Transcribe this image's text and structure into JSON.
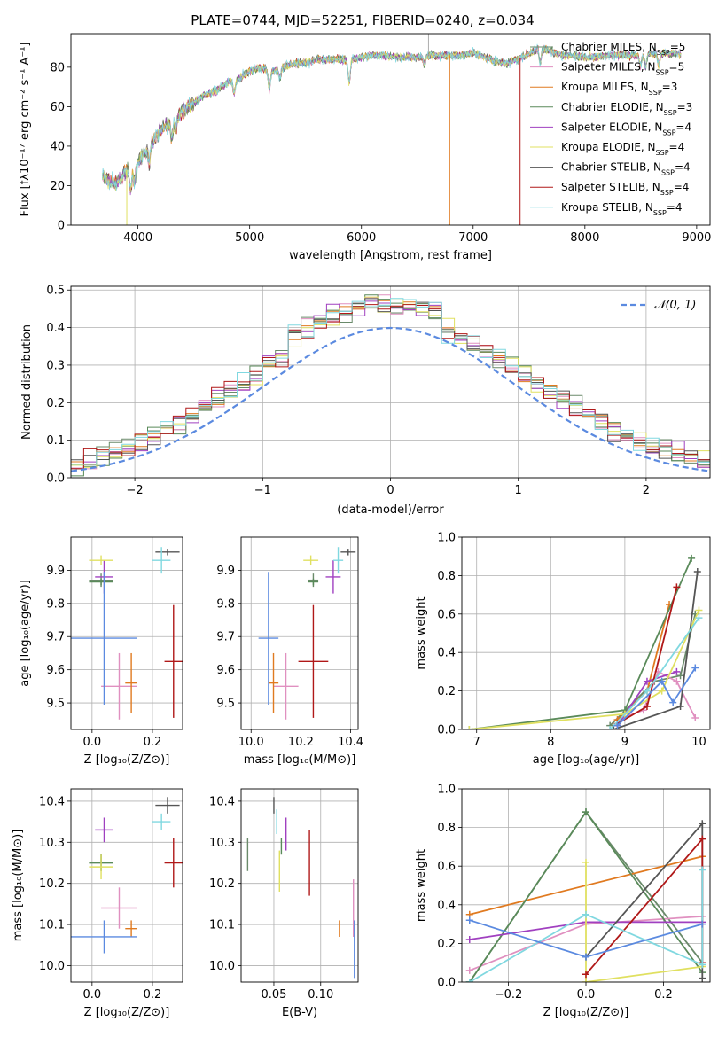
{
  "colors": [
    "#6a8a6a",
    "#e090c0",
    "#e07a20",
    "#5a8a5a",
    "#a040c0",
    "#e0e060",
    "#555555",
    "#b01818",
    "#80d8e0"
  ],
  "chart_data": [
    {
      "id": "spectrum",
      "type": "line",
      "title": "PLATE=0744, MJD=52251, FIBERID=0240, z=0.034",
      "xlabel": "wavelength [Angstrom, rest frame]",
      "ylabel": "Flux [fλ10⁻¹⁷ erg cm⁻² s⁻¹ A⁻¹]",
      "xlim": [
        3400,
        9120
      ],
      "ylim": [
        0,
        97
      ],
      "xticks": [
        4000,
        5000,
        6000,
        7000,
        8000,
        9000
      ],
      "yticks": [
        0,
        20,
        40,
        60,
        80
      ],
      "legend": [
        {
          "label": "Chabrier MILES, N",
          "sub": "SSP",
          "tail": "=5"
        },
        {
          "label": "Salpeter MILES, N",
          "sub": "SSP",
          "tail": "=5"
        },
        {
          "label": "Kroupa MILES, N",
          "sub": "SSP",
          "tail": "=3"
        },
        {
          "label": "Chabrier ELODIE, N",
          "sub": "SSP",
          "tail": "=3"
        },
        {
          "label": "Salpeter ELODIE, N",
          "sub": "SSP",
          "tail": "=4"
        },
        {
          "label": "Kroupa ELODIE, N",
          "sub": "SSP",
          "tail": "=4"
        },
        {
          "label": "Chabrier STELIB, N",
          "sub": "SSP",
          "tail": "=4"
        },
        {
          "label": "Salpeter STELIB, N",
          "sub": "SSP",
          "tail": "=4"
        },
        {
          "label": "Kroupa STELIB, N",
          "sub": "SSP",
          "tail": "=4"
        }
      ],
      "legend_placement": "right",
      "continuum": [
        [
          3680,
          25
        ],
        [
          3800,
          20
        ],
        [
          3900,
          28
        ],
        [
          4000,
          32
        ],
        [
          4100,
          40
        ],
        [
          4200,
          48
        ],
        [
          4300,
          52
        ],
        [
          4400,
          58
        ],
        [
          4500,
          62
        ],
        [
          4600,
          66
        ],
        [
          4700,
          68
        ],
        [
          4800,
          72
        ],
        [
          4900,
          74
        ],
        [
          5000,
          78
        ],
        [
          5100,
          80
        ],
        [
          5200,
          78
        ],
        [
          5300,
          80
        ],
        [
          5400,
          82
        ],
        [
          5500,
          82
        ],
        [
          5600,
          84
        ],
        [
          5700,
          84
        ],
        [
          5800,
          84
        ],
        [
          5900,
          84
        ],
        [
          6000,
          85
        ],
        [
          6100,
          86
        ],
        [
          6200,
          86
        ],
        [
          6300,
          85
        ],
        [
          6400,
          85
        ],
        [
          6500,
          85
        ],
        [
          6600,
          86
        ],
        [
          6700,
          86
        ],
        [
          6800,
          86
        ],
        [
          6900,
          86
        ],
        [
          7000,
          87
        ],
        [
          7100,
          85
        ],
        [
          7200,
          83
        ],
        [
          7300,
          82
        ],
        [
          7400,
          84
        ],
        [
          7500,
          87
        ],
        [
          7600,
          90
        ],
        [
          7700,
          88
        ],
        [
          7800,
          86
        ],
        [
          7900,
          86
        ],
        [
          8000,
          85
        ],
        [
          8200,
          86
        ],
        [
          8400,
          86
        ],
        [
          8600,
          87
        ],
        [
          8800,
          87
        ],
        [
          8860,
          86
        ]
      ]
    },
    {
      "id": "residuals",
      "type": "line",
      "xlabel": "(data-model)/error",
      "ylabel": "Normed distribution",
      "xlim": [
        -2.5,
        2.5
      ],
      "ylim": [
        0,
        0.51
      ],
      "xticks": [
        -2,
        -1,
        0,
        1,
        2
      ],
      "yticks": [
        0.0,
        0.1,
        0.2,
        0.3,
        0.4,
        0.5
      ],
      "legend": "𝒩(0, 1)",
      "legend_placement": "upper right",
      "grid": true,
      "bin_width": 0.1
    },
    {
      "id": "age_vs_Z",
      "type": "scatter",
      "xlabel": "Z [log₁₀(Z/Z⊙)]",
      "ylabel": "age  [log₁₀(age/yr)]",
      "xlim": [
        -0.07,
        0.3
      ],
      "ylim": [
        9.42,
        10.0
      ],
      "xticks": [
        0.0,
        0.2
      ],
      "yticks": [
        9.5,
        9.6,
        9.7,
        9.8,
        9.9
      ],
      "grid": true,
      "points": [
        {
          "series": 0,
          "x": 0.03,
          "y": 9.87,
          "xerr": 0.04,
          "yerr": 0.02
        },
        {
          "series": 1,
          "x": 0.09,
          "y": 9.55,
          "xerr": 0.06,
          "yerr": 0.1
        },
        {
          "series": 2,
          "x": 0.13,
          "y": 9.56,
          "xerr": 0.02,
          "yerr": 0.09
        },
        {
          "series": 3,
          "x": 0.03,
          "y": 9.865,
          "xerr": 0.04,
          "yerr": 0.01
        },
        {
          "series": 4,
          "x": 0.04,
          "y": 9.88,
          "xerr": 0.03,
          "yerr": 0.05
        },
        {
          "series": 5,
          "x": 0.03,
          "y": 9.93,
          "xerr": 0.04,
          "yerr": 0.015
        },
        {
          "series": 6,
          "x": 0.25,
          "y": 9.955,
          "xerr": 0.04,
          "yerr": 0.01
        },
        {
          "series": 7,
          "x": 0.27,
          "y": 9.625,
          "xerr": 0.03,
          "yerr": 0.17
        },
        {
          "series": 8,
          "x": 0.23,
          "y": 9.93,
          "xerr": 0.03,
          "yerr": 0.04
        },
        {
          "series": -1,
          "x": 0.04,
          "y": 9.695,
          "xerr": 0.11,
          "yerr": 0.2
        }
      ]
    },
    {
      "id": "age_vs_mass",
      "type": "scatter",
      "xlabel": "mass [log₁₀(M/M⊙)]",
      "xlim": [
        9.96,
        10.43
      ],
      "ylim": [
        9.42,
        10.0
      ],
      "xticks": [
        10.0,
        10.2,
        10.4
      ],
      "yticks": [
        9.5,
        9.6,
        9.7,
        9.8,
        9.9
      ],
      "grid": true,
      "points": [
        {
          "series": 0,
          "x": 10.25,
          "y": 9.87,
          "xerr": 0.02,
          "yerr": 0.02
        },
        {
          "series": 1,
          "x": 10.14,
          "y": 9.55,
          "xerr": 0.05,
          "yerr": 0.1
        },
        {
          "series": 2,
          "x": 10.09,
          "y": 9.56,
          "xerr": 0.02,
          "yerr": 0.09
        },
        {
          "series": 3,
          "x": 10.25,
          "y": 9.865,
          "xerr": 0.02,
          "yerr": 0.01
        },
        {
          "series": 4,
          "x": 10.33,
          "y": 9.88,
          "xerr": 0.03,
          "yerr": 0.05
        },
        {
          "series": 5,
          "x": 10.24,
          "y": 9.93,
          "xerr": 0.03,
          "yerr": 0.015
        },
        {
          "series": 6,
          "x": 10.39,
          "y": 9.955,
          "xerr": 0.03,
          "yerr": 0.01
        },
        {
          "series": 7,
          "x": 10.25,
          "y": 9.625,
          "xerr": 0.06,
          "yerr": 0.17
        },
        {
          "series": 8,
          "x": 10.35,
          "y": 9.93,
          "xerr": 0.02,
          "yerr": 0.04
        },
        {
          "series": -1,
          "x": 10.07,
          "y": 9.695,
          "xerr": 0.04,
          "yerr": 0.2
        }
      ]
    },
    {
      "id": "massweight_vs_age",
      "type": "line",
      "xlabel": "age  [log₁₀(age/yr)]",
      "ylabel": "mass weight",
      "xlim": [
        6.8,
        10.15
      ],
      "ylim": [
        0,
        1.0
      ],
      "xticks": [
        7,
        8,
        9,
        10
      ],
      "yticks": [
        0.0,
        0.2,
        0.4,
        0.6,
        0.8,
        1.0
      ],
      "grid": true,
      "series": [
        {
          "series": 0,
          "pts": [
            [
              8.8,
              0.02
            ],
            [
              9.4,
              0.25
            ],
            [
              9.75,
              0.28
            ],
            [
              9.95,
              0.6
            ]
          ]
        },
        {
          "series": 1,
          "pts": [
            [
              8.9,
              0.05
            ],
            [
              9.25,
              0.1
            ],
            [
              9.45,
              0.3
            ],
            [
              9.7,
              0.25
            ],
            [
              9.95,
              0.06
            ]
          ]
        },
        {
          "series": 2,
          "pts": [
            [
              8.9,
              0.05
            ],
            [
              9.3,
              0.2
            ],
            [
              9.6,
              0.65
            ]
          ]
        },
        {
          "series": 3,
          "pts": [
            [
              6.9,
              0.0
            ],
            [
              9.0,
              0.1
            ],
            [
              9.9,
              0.89
            ]
          ]
        },
        {
          "series": 4,
          "pts": [
            [
              8.9,
              0.02
            ],
            [
              9.3,
              0.25
            ],
            [
              9.7,
              0.3
            ]
          ]
        },
        {
          "series": 5,
          "pts": [
            [
              6.9,
              0.0
            ],
            [
              9.0,
              0.08
            ],
            [
              9.5,
              0.2
            ],
            [
              10.0,
              0.62
            ]
          ]
        },
        {
          "series": 6,
          "pts": [
            [
              8.85,
              0.0
            ],
            [
              9.75,
              0.12
            ],
            [
              9.98,
              0.82
            ]
          ]
        },
        {
          "series": 7,
          "pts": [
            [
              8.9,
              0.03
            ],
            [
              9.3,
              0.12
            ],
            [
              9.7,
              0.74
            ]
          ]
        },
        {
          "series": 8,
          "pts": [
            [
              8.8,
              0.0
            ],
            [
              9.3,
              0.2
            ],
            [
              10.0,
              0.58
            ]
          ]
        },
        {
          "series": -1,
          "pts": [
            [
              8.9,
              0.02
            ],
            [
              9.5,
              0.25
            ],
            [
              9.65,
              0.14
            ],
            [
              9.95,
              0.32
            ]
          ]
        }
      ]
    },
    {
      "id": "mass_vs_Z",
      "type": "scatter",
      "xlabel": "Z [log₁₀(Z/Z⊙)]",
      "ylabel": "mass [log₁₀(M/M⊙)]",
      "xlim": [
        -0.07,
        0.3
      ],
      "ylim": [
        9.96,
        10.43
      ],
      "xticks": [
        0.0,
        0.2
      ],
      "yticks": [
        10.0,
        10.1,
        10.2,
        10.3,
        10.4
      ],
      "grid": true,
      "points": [
        {
          "series": 0,
          "x": 0.03,
          "y": 10.25,
          "xerr": 0.04,
          "yerr": 0.02
        },
        {
          "series": 1,
          "x": 0.09,
          "y": 10.14,
          "xerr": 0.06,
          "yerr": 0.05
        },
        {
          "series": 2,
          "x": 0.13,
          "y": 10.09,
          "xerr": 0.02,
          "yerr": 0.02
        },
        {
          "series": 3,
          "x": 0.03,
          "y": 10.25,
          "xerr": 0.04,
          "yerr": 0.02
        },
        {
          "series": 4,
          "x": 0.04,
          "y": 10.33,
          "xerr": 0.03,
          "yerr": 0.03
        },
        {
          "series": 5,
          "x": 0.03,
          "y": 10.24,
          "xerr": 0.04,
          "yerr": 0.03
        },
        {
          "series": 6,
          "x": 0.25,
          "y": 10.39,
          "xerr": 0.04,
          "yerr": 0.02
        },
        {
          "series": 7,
          "x": 0.27,
          "y": 10.25,
          "xerr": 0.03,
          "yerr": 0.06
        },
        {
          "series": 8,
          "x": 0.23,
          "y": 10.35,
          "xerr": 0.03,
          "yerr": 0.02
        },
        {
          "series": -1,
          "x": 0.04,
          "y": 10.07,
          "xerr": 0.11,
          "yerr": 0.04
        }
      ]
    },
    {
      "id": "mass_vs_EBV",
      "type": "scatter",
      "xlabel": "E(B-V)",
      "xlim": [
        0.015,
        0.14
      ],
      "ylim": [
        9.96,
        10.43
      ],
      "xticks": [
        0.05,
        0.1
      ],
      "yticks": [
        10.0,
        10.1,
        10.2,
        10.3,
        10.4
      ],
      "grid": true,
      "points": [
        {
          "series": 0,
          "x": 0.022,
          "y": 10.27,
          "xerr": 0,
          "yerr": 0.04
        },
        {
          "series": 1,
          "x": 0.135,
          "y": 10.14,
          "xerr": 0,
          "yerr": 0.07
        },
        {
          "series": 2,
          "x": 0.12,
          "y": 10.09,
          "xerr": 0,
          "yerr": 0.02
        },
        {
          "series": 3,
          "x": 0.058,
          "y": 10.29,
          "xerr": 0,
          "yerr": 0.02
        },
        {
          "series": 4,
          "x": 0.063,
          "y": 10.32,
          "xerr": 0,
          "yerr": 0.04
        },
        {
          "series": 5,
          "x": 0.056,
          "y": 10.23,
          "xerr": 0,
          "yerr": 0.05
        },
        {
          "series": 6,
          "x": 0.05,
          "y": 10.39,
          "xerr": 0,
          "yerr": 0.02
        },
        {
          "series": 7,
          "x": 0.088,
          "y": 10.25,
          "xerr": 0,
          "yerr": 0.08
        },
        {
          "series": 8,
          "x": 0.053,
          "y": 10.35,
          "xerr": 0,
          "yerr": 0.03
        },
        {
          "series": -1,
          "x": 0.136,
          "y": 10.04,
          "xerr": 0,
          "yerr": 0.07
        }
      ]
    },
    {
      "id": "massweight_vs_Z",
      "type": "line",
      "xlabel": "Z [log₁₀(Z/Z⊙)]",
      "ylabel": "mass weight",
      "xlim": [
        -0.32,
        0.32
      ],
      "ylim": [
        0,
        1.0
      ],
      "xticks": [
        -0.2,
        0.0,
        0.2
      ],
      "yticks": [
        0.0,
        0.2,
        0.4,
        0.6,
        0.8,
        1.0
      ],
      "grid": true,
      "series": [
        {
          "series": 0,
          "pts": [
            [
              -0.3,
              0.0
            ],
            [
              0.0,
              0.88
            ],
            [
              0.3,
              0.1
            ]
          ]
        },
        {
          "series": 1,
          "pts": [
            [
              -0.3,
              0.06
            ],
            [
              0.0,
              0.3
            ],
            [
              0.3,
              0.34
            ]
          ]
        },
        {
          "series": 2,
          "pts": [
            [
              -0.3,
              0.35
            ],
            [
              0.3,
              0.65
            ]
          ]
        },
        {
          "series": 3,
          "pts": [
            [
              -0.3,
              0.0
            ],
            [
              0.0,
              0.88
            ],
            [
              0.3,
              0.05
            ]
          ]
        },
        {
          "series": 4,
          "pts": [
            [
              -0.3,
              0.22
            ],
            [
              0.0,
              0.31
            ],
            [
              0.3,
              0.31
            ]
          ]
        },
        {
          "series": 5,
          "pts": [
            [
              0.0,
              0.62
            ],
            [
              0.0,
              0.0
            ],
            [
              0.3,
              0.08
            ]
          ]
        },
        {
          "series": 6,
          "pts": [
            [
              0.0,
              0.13
            ],
            [
              0.3,
              0.82
            ],
            [
              0.3,
              0.02
            ]
          ]
        },
        {
          "series": 7,
          "pts": [
            [
              0.0,
              0.04
            ],
            [
              0.3,
              0.74
            ],
            [
              0.3,
              0.1
            ]
          ]
        },
        {
          "series": 8,
          "pts": [
            [
              -0.3,
              0.0
            ],
            [
              0.0,
              0.35
            ],
            [
              0.3,
              0.09
            ],
            [
              0.3,
              0.58
            ]
          ]
        },
        {
          "series": -1,
          "pts": [
            [
              -0.3,
              0.32
            ],
            [
              0.0,
              0.13
            ],
            [
              0.3,
              0.3
            ]
          ]
        }
      ]
    }
  ]
}
